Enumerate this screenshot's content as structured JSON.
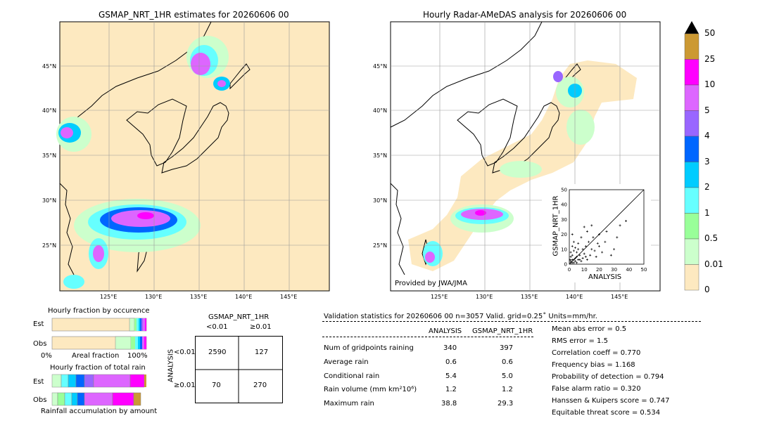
{
  "colors": {
    "land": "#fde9c0",
    "sea": "#ffffff",
    "grid": "#999999"
  },
  "map_left": {
    "title": "GSMAP_NRT_1HR estimates for 20260606 00",
    "lat_ticks": [
      "45°N",
      "40°N",
      "35°N",
      "30°N",
      "25°N"
    ],
    "lon_ticks": [
      "125°E",
      "130°E",
      "135°E",
      "140°E",
      "145°E"
    ]
  },
  "map_right": {
    "title": "Hourly Radar-AMeDAS analysis for 20260606 00",
    "lat_ticks": [
      "45°N",
      "40°N",
      "35°N",
      "30°N",
      "25°N"
    ],
    "lon_ticks": [
      "125°E",
      "130°E",
      "135°E",
      "140°E",
      "145°E"
    ],
    "credit": "Provided by JWA/JMA"
  },
  "colorbar": {
    "labels": [
      "50",
      "25",
      "10",
      "5",
      "4",
      "3",
      "2",
      "1",
      "0.5",
      "0.01",
      "0"
    ],
    "colors": [
      "#cc9933",
      "#ff00ff",
      "#dd66ff",
      "#9966ff",
      "#0066ff",
      "#00ccff",
      "#66ffff",
      "#99ff99",
      "#ccffcc",
      "#fde9c0"
    ]
  },
  "occurrence": {
    "title": "Hourly fraction by occurence",
    "est_label": "Est",
    "obs_label": "Obs",
    "x0": "0%",
    "xlabel": "Areal fraction",
    "x1": "100%"
  },
  "total_rain": {
    "title": "Hourly fraction of total rain",
    "est_label": "Est",
    "obs_label": "Obs",
    "xlabel": "Rainfall accumulation by amount"
  },
  "contingency": {
    "header": "GSMAP_NRT_1HR",
    "col1": "<0.01",
    "col2": "≥0.01",
    "row_axis": "ANALYSIS",
    "row1": "<0.01",
    "row2": "≥0.01",
    "cells": [
      "2590",
      "127",
      "70",
      "270"
    ]
  },
  "validation": {
    "header": "Validation statistics for 20260606 00  n=3057 Valid. grid=0.25˚ Units=mm/hr.",
    "col_analysis": "ANALYSIS",
    "col_gsmap": "GSMAP_NRT_1HR",
    "rows": [
      {
        "label": "Num of gridpoints raining",
        "a": "340",
        "g": "397"
      },
      {
        "label": "Average rain",
        "a": "0.6",
        "g": "0.6"
      },
      {
        "label": "Conditional rain",
        "a": "5.4",
        "g": "5.0"
      },
      {
        "label": "Rain volume (mm km²10⁶)",
        "a": "1.2",
        "g": "1.2"
      },
      {
        "label": "Maximum rain",
        "a": "38.8",
        "g": "29.3"
      }
    ],
    "scores": [
      "Mean abs error =    0.5",
      "RMS error =    1.5",
      "Correlation coeff =  0.770",
      "Frequency bias =  1.168",
      "Probability of detection =  0.794",
      "False alarm ratio =  0.320",
      "Hanssen & Kuipers score =  0.747",
      "Equitable threat score =  0.534"
    ]
  },
  "chart_data": {
    "type": "scatter",
    "xlabel": "ANALYSIS",
    "ylabel": "GSMAP_NRT_1HR",
    "xlim": [
      0,
      50
    ],
    "ylim": [
      0,
      50
    ],
    "ticks": [
      0,
      10,
      20,
      30,
      40,
      50
    ],
    "points": [
      [
        1,
        2
      ],
      [
        2,
        1
      ],
      [
        1,
        5
      ],
      [
        3,
        3
      ],
      [
        2,
        6
      ],
      [
        4,
        2
      ],
      [
        1,
        8
      ],
      [
        5,
        5
      ],
      [
        3,
        9
      ],
      [
        6,
        3
      ],
      [
        2,
        12
      ],
      [
        7,
        6
      ],
      [
        4,
        4
      ],
      [
        8,
        2
      ],
      [
        1,
        1
      ],
      [
        2,
        3
      ],
      [
        3,
        1
      ],
      [
        5,
        8
      ],
      [
        6,
        10
      ],
      [
        9,
        4
      ],
      [
        10,
        7
      ],
      [
        12,
        3
      ],
      [
        14,
        6
      ],
      [
        11,
        12
      ],
      [
        15,
        10
      ],
      [
        18,
        5
      ],
      [
        13,
        15
      ],
      [
        16,
        18
      ],
      [
        20,
        12
      ],
      [
        22,
        8
      ],
      [
        24,
        15
      ],
      [
        12,
        22
      ],
      [
        10,
        25
      ],
      [
        15,
        26
      ],
      [
        28,
        6
      ],
      [
        30,
        10
      ],
      [
        20,
        20
      ],
      [
        25,
        22
      ],
      [
        32,
        18
      ],
      [
        34,
        26
      ],
      [
        38,
        29
      ],
      [
        8,
        18
      ],
      [
        6,
        14
      ],
      [
        3,
        15
      ],
      [
        9,
        10
      ],
      [
        17,
        9
      ],
      [
        19,
        14
      ],
      [
        2,
        20
      ],
      [
        4,
        11
      ],
      [
        7,
        3
      ],
      [
        11,
        5
      ],
      [
        5,
        1
      ],
      [
        0.5,
        3
      ]
    ]
  }
}
